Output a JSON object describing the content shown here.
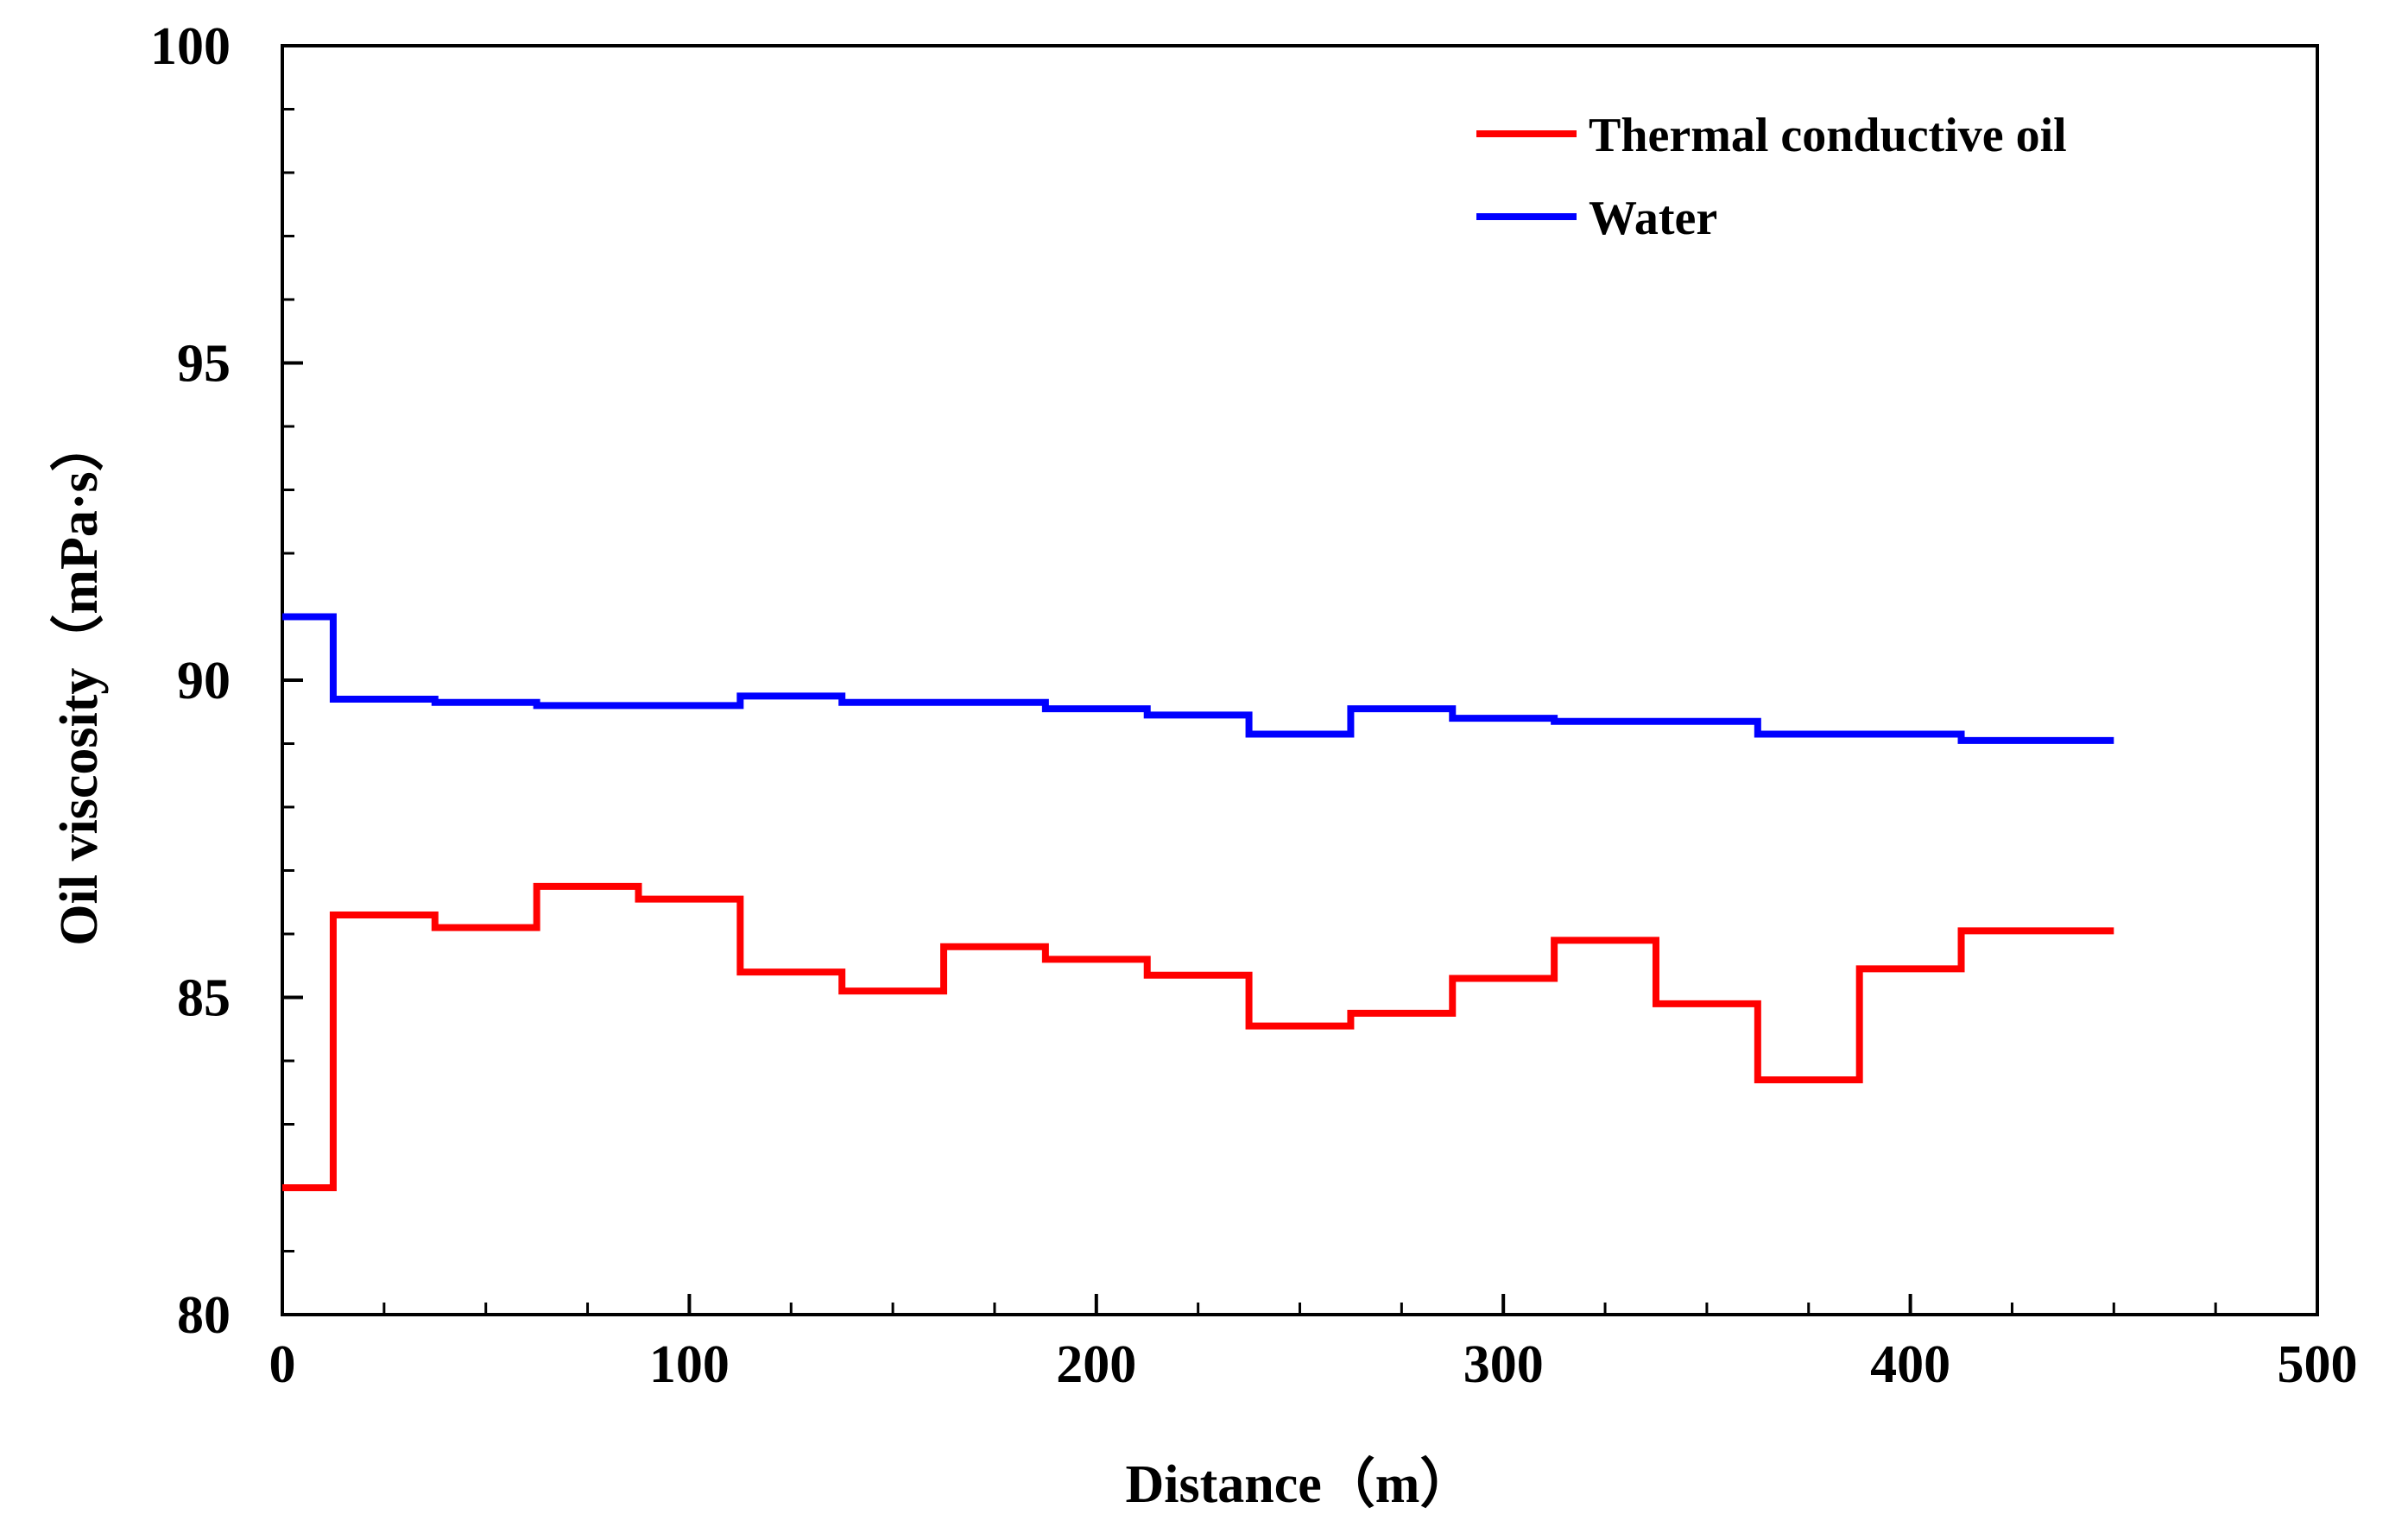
{
  "chart_data": {
    "type": "line",
    "step": true,
    "title": "",
    "xlabel": "Distance（m）",
    "ylabel": "Oil viscosity（mPa·s）",
    "xlim": [
      0,
      500
    ],
    "ylim": [
      80,
      100
    ],
    "x_ticks": [
      0,
      100,
      200,
      300,
      400,
      500
    ],
    "x_tick_labels": [
      "0",
      "100",
      "200",
      "300",
      "400",
      "500"
    ],
    "y_ticks": [
      80,
      85,
      90,
      95,
      100
    ],
    "y_tick_labels": [
      "80",
      "85",
      "90",
      "95",
      "100"
    ],
    "grid": false,
    "legend_position": "top-right",
    "series": [
      {
        "name": "Thermal conductive oil",
        "color": "#ff0000",
        "x": [
          0,
          12.5,
          37.5,
          62.5,
          87.5,
          112.5,
          137.5,
          162.5,
          187.5,
          212.5,
          237.5,
          262.5,
          287.5,
          312.5,
          337.5,
          362.5,
          387.5,
          412.5,
          450
        ],
        "values": [
          82.0,
          86.3,
          86.1,
          86.75,
          86.55,
          85.4,
          85.1,
          85.8,
          85.6,
          85.35,
          84.55,
          84.75,
          85.3,
          85.9,
          84.9,
          83.7,
          85.45,
          86.05,
          86.05
        ]
      },
      {
        "name": "Water",
        "color": "#0000ff",
        "x": [
          0,
          12.5,
          37.5,
          62.5,
          87.5,
          112.5,
          137.5,
          162.5,
          187.5,
          212.5,
          237.5,
          262.5,
          287.5,
          312.5,
          337.5,
          362.5,
          387.5,
          412.5,
          450
        ],
        "values": [
          91.0,
          89.7,
          89.65,
          89.6,
          89.6,
          89.75,
          89.65,
          89.65,
          89.55,
          89.45,
          89.15,
          89.55,
          89.4,
          89.35,
          89.35,
          89.15,
          89.15,
          89.05,
          89.05
        ]
      }
    ]
  }
}
